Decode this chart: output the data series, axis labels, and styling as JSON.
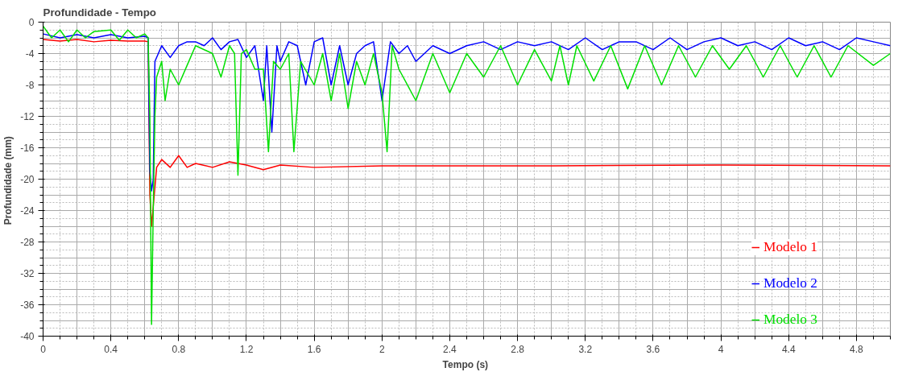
{
  "chart_data": {
    "type": "line",
    "title": "Profundidade - Tempo",
    "xlabel": "Tempo  (s)",
    "ylabel": "Profundidade  (mm)",
    "xlim": [
      0,
      5
    ],
    "ylim": [
      -40,
      0
    ],
    "xticks": [
      0,
      0.4,
      0.8,
      1.2,
      1.6,
      2,
      2.4,
      2.8,
      3.2,
      3.6,
      4,
      4.4,
      4.8
    ],
    "yticks": [
      0,
      -4,
      -8,
      -12,
      -16,
      -20,
      -24,
      -28,
      -32,
      -36,
      -40
    ],
    "grid": true,
    "legend": "bottom right",
    "line_style": "solid",
    "marker": "none",
    "series": [
      {
        "name": "Modelo 1",
        "color": "#ff0000",
        "x": [
          0,
          0.1,
          0.2,
          0.3,
          0.4,
          0.5,
          0.6,
          0.62,
          0.63,
          0.64,
          0.67,
          0.7,
          0.75,
          0.8,
          0.85,
          0.9,
          1.0,
          1.1,
          1.2,
          1.3,
          1.4,
          1.6,
          2.0,
          3.0,
          4.0,
          5.0
        ],
        "values": [
          -2.2,
          -2.4,
          -2.2,
          -2.5,
          -2.3,
          -2.4,
          -2.4,
          -2.5,
          -22,
          -26,
          -18.5,
          -17.5,
          -18.5,
          -17,
          -18.5,
          -18,
          -18.5,
          -17.8,
          -18.2,
          -18.8,
          -18.2,
          -18.5,
          -18.3,
          -18.3,
          -18.2,
          -18.3
        ]
      },
      {
        "name": "Modelo 2",
        "color": "#0000ff",
        "x": [
          0,
          0.1,
          0.2,
          0.3,
          0.4,
          0.5,
          0.6,
          0.62,
          0.63,
          0.64,
          0.65,
          0.66,
          0.68,
          0.7,
          0.75,
          0.8,
          0.85,
          0.9,
          0.95,
          1.0,
          1.05,
          1.1,
          1.15,
          1.2,
          1.25,
          1.3,
          1.32,
          1.35,
          1.38,
          1.4,
          1.45,
          1.5,
          1.55,
          1.6,
          1.65,
          1.7,
          1.75,
          1.8,
          1.85,
          1.9,
          1.95,
          2.0,
          2.05,
          2.1,
          2.15,
          2.2,
          2.3,
          2.4,
          2.5,
          2.6,
          2.7,
          2.8,
          2.9,
          3.0,
          3.1,
          3.2,
          3.3,
          3.4,
          3.5,
          3.6,
          3.7,
          3.8,
          3.9,
          4.0,
          4.1,
          4.2,
          4.3,
          4.4,
          4.5,
          4.6,
          4.7,
          4.8,
          4.9,
          5.0
        ],
        "values": [
          -1.5,
          -2,
          -1.6,
          -2,
          -1.6,
          -2,
          -1.8,
          -2,
          -19,
          -21.5,
          -20,
          -5,
          -4,
          -3,
          -4.5,
          -3,
          -2.5,
          -2.5,
          -3,
          -2,
          -3.5,
          -2.5,
          -2.2,
          -4.5,
          -3,
          -10,
          -3,
          -14,
          -3,
          -5,
          -2.5,
          -3,
          -8,
          -2.5,
          -2,
          -8,
          -3,
          -8,
          -4,
          -3,
          -2.5,
          -10,
          -2.5,
          -4,
          -3,
          -5,
          -3,
          -4,
          -3,
          -2.5,
          -3.5,
          -2.5,
          -3,
          -2.5,
          -3.5,
          -2,
          -3.5,
          -2.5,
          -2.5,
          -3.5,
          -2,
          -3.5,
          -2.5,
          -2,
          -3,
          -2.5,
          -3.5,
          -2,
          -3,
          -2.5,
          -3.5,
          -2,
          -2.5,
          -3
        ]
      },
      {
        "name": "Modelo 3",
        "color": "#00e000",
        "x": [
          0,
          0.05,
          0.1,
          0.15,
          0.2,
          0.25,
          0.3,
          0.4,
          0.45,
          0.5,
          0.55,
          0.6,
          0.62,
          0.63,
          0.64,
          0.65,
          0.66,
          0.67,
          0.7,
          0.72,
          0.75,
          0.8,
          0.85,
          0.9,
          1.0,
          1.05,
          1.1,
          1.13,
          1.15,
          1.17,
          1.2,
          1.25,
          1.3,
          1.33,
          1.36,
          1.4,
          1.45,
          1.48,
          1.52,
          1.6,
          1.65,
          1.7,
          1.75,
          1.8,
          1.85,
          1.9,
          1.95,
          2.0,
          2.03,
          2.06,
          2.1,
          2.2,
          2.3,
          2.4,
          2.5,
          2.6,
          2.7,
          2.8,
          2.9,
          3.0,
          3.05,
          3.1,
          3.15,
          3.25,
          3.35,
          3.45,
          3.55,
          3.65,
          3.75,
          3.85,
          3.95,
          4.05,
          4.15,
          4.25,
          4.35,
          4.45,
          4.55,
          4.65,
          4.75,
          4.9,
          5.0
        ],
        "values": [
          -0.5,
          -2,
          -1,
          -2.5,
          -1,
          -2,
          -1.2,
          -1,
          -2.3,
          -1,
          -2,
          -1.5,
          -2,
          -12,
          -38.5,
          -24,
          -12,
          -7,
          -5,
          -10,
          -6,
          -8,
          -5.5,
          -3,
          -4,
          -7,
          -3,
          -4,
          -19.5,
          -4,
          -3.5,
          -6,
          -6,
          -16.5,
          -5,
          -6,
          -4,
          -16.5,
          -5,
          -8,
          -4,
          -10,
          -4,
          -11,
          -5,
          -8,
          -4,
          -9,
          -16.5,
          -3,
          -6,
          -10,
          -4,
          -9,
          -4,
          -7,
          -3,
          -8,
          -3.5,
          -7.5,
          -3,
          -8,
          -3,
          -7.5,
          -3,
          -8.5,
          -3,
          -8,
          -3,
          -7,
          -3,
          -6,
          -3,
          -7,
          -3,
          -7,
          -3,
          -7,
          -3,
          -5.5,
          -4
        ]
      }
    ]
  }
}
